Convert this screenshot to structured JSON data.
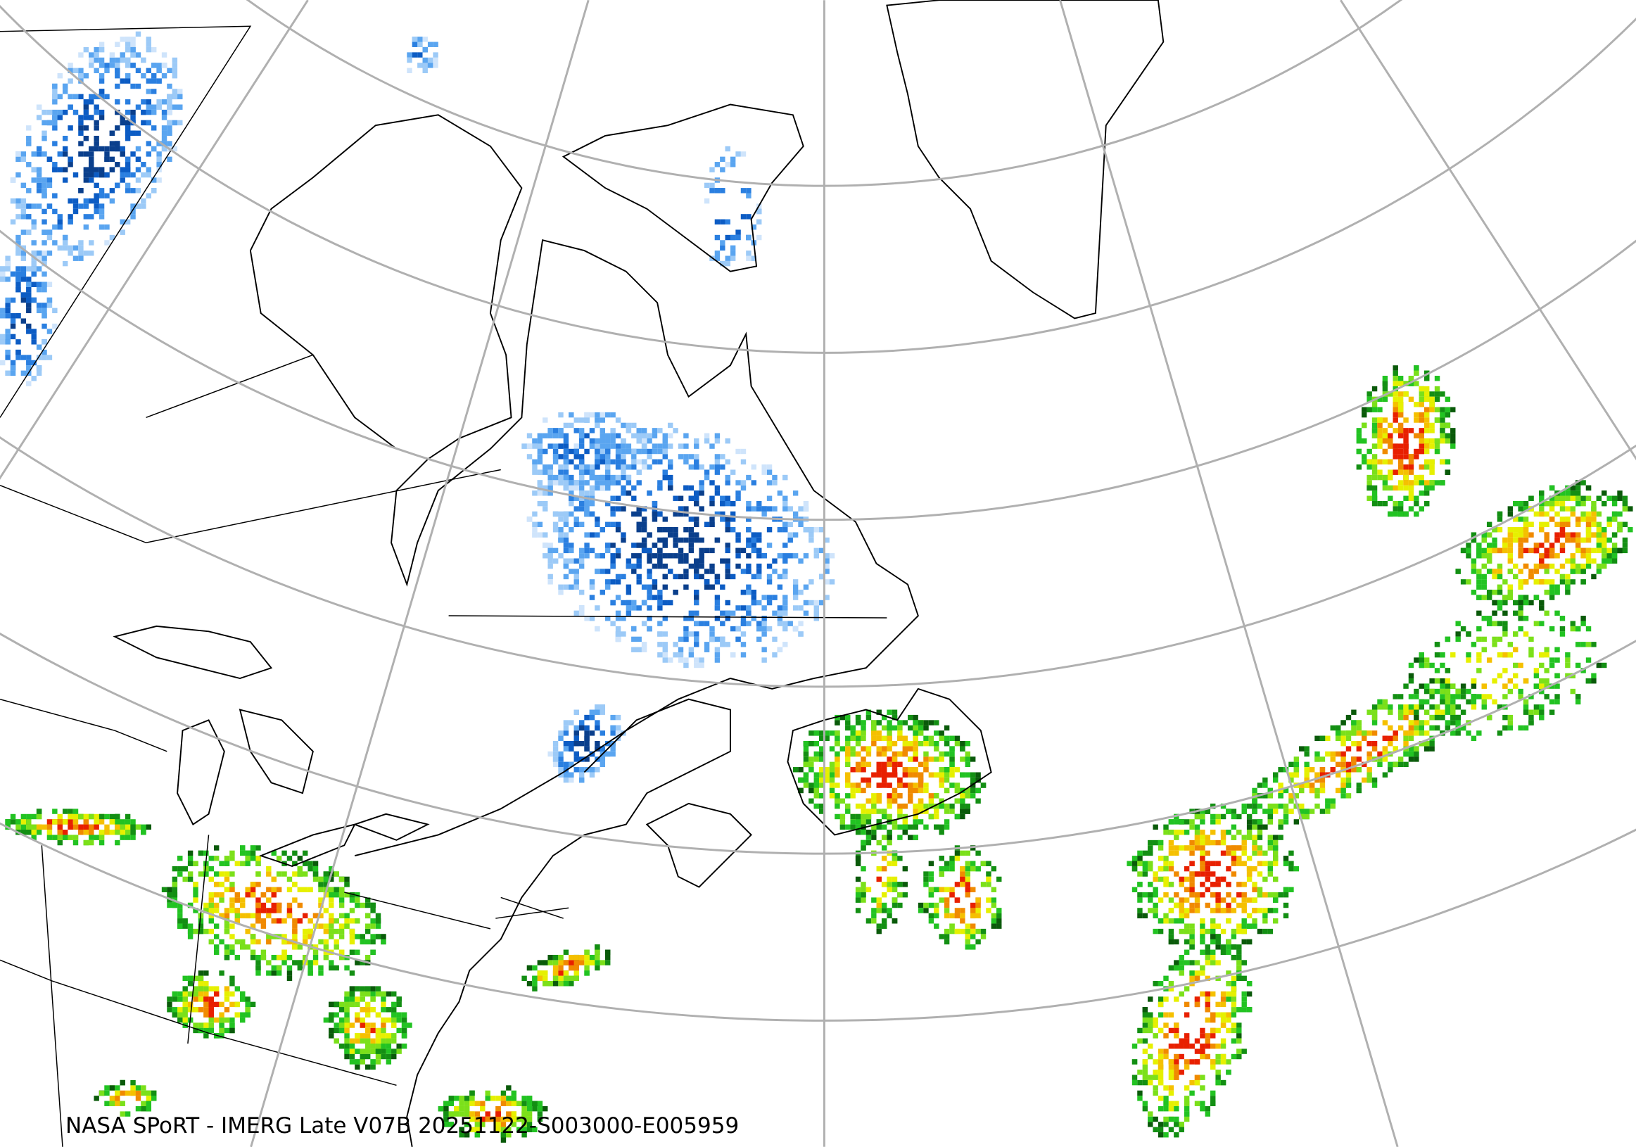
{
  "caption": "NASA SPoRT - IMERG Late V07B 20251122-S003000-E005959",
  "colors": {
    "graticule": "#b0b0b0",
    "coastline": "#000000",
    "snow_scale": [
      "#cfe4fb",
      "#9ccaf7",
      "#5aa5f0",
      "#2a7fe0",
      "#0c5cc4",
      "#0a3f8c"
    ],
    "rain_scale": [
      "#0a5a0a",
      "#138f13",
      "#22c322",
      "#7be01a",
      "#e6f000",
      "#f5c000",
      "#f08a00",
      "#e82000"
    ],
    "mixed": "#f07ab0"
  }
}
